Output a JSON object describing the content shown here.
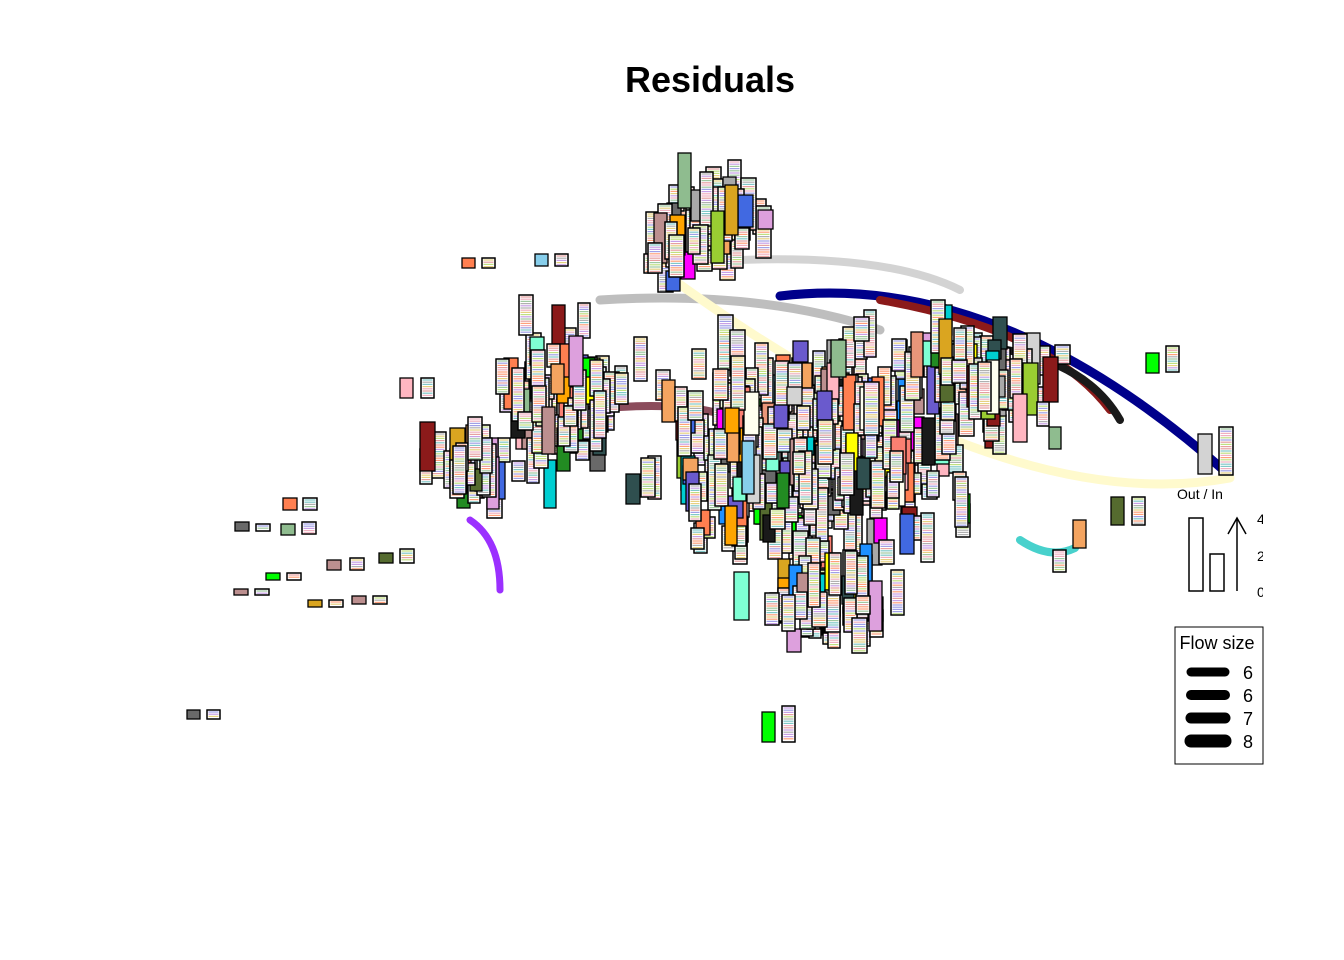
{
  "chart_data": {
    "type": "flow-map",
    "title": "Residuals",
    "bar_legend": {
      "label": "Out / In",
      "ticks": [
        "4",
        "2",
        "0"
      ]
    },
    "flow_legend": {
      "title": "Flow size",
      "entries": [
        "6",
        "6",
        "7",
        "8"
      ]
    },
    "flows": [
      {
        "color": "#00008b"
      },
      {
        "color": "#8b1a1a"
      },
      {
        "color": "#1a1a1a"
      },
      {
        "color": "#d3d3d3"
      },
      {
        "color": "#bebebe"
      },
      {
        "color": "#fffacd"
      },
      {
        "color": "#8b4c5c"
      },
      {
        "color": "#9b30ff"
      },
      {
        "color": "#48d1cc"
      }
    ],
    "palette": [
      "#228b22",
      "#8b1a1a",
      "#1e90ff",
      "#ffff00",
      "#ff00ff",
      "#00ff00",
      "#ffa500",
      "#696969",
      "#d3d3d3",
      "#fa8072",
      "#f4a460",
      "#4169e1",
      "#2f4f4f",
      "#ffb6c1",
      "#00ced1",
      "#8fbc8f",
      "#daa520",
      "#bc8f8f",
      "#ff7f50",
      "#6a5acd",
      "#1a1a1a",
      "#fffff0",
      "#9acd32",
      "#a9a9a9",
      "#dda0dd",
      "#7fffd4",
      "#cd5c5c",
      "#556b2f",
      "#87ceeb",
      "#e9967a"
    ]
  }
}
